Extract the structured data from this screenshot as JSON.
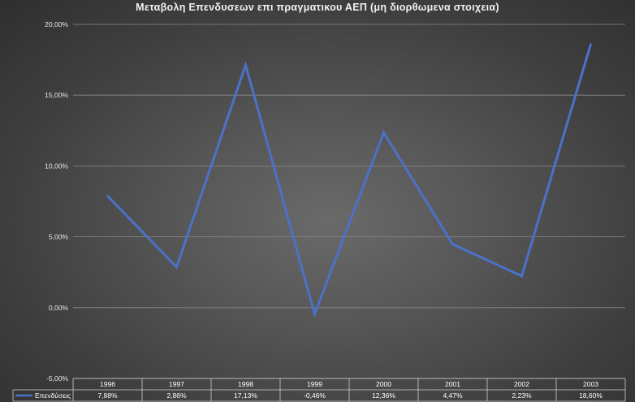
{
  "chart_data": {
    "type": "line",
    "title": "Μεταβολη Επενδυσεων επι πραγματικου ΑΕΠ (μη διορθωμενα στοιχεια)",
    "categories": [
      "1996",
      "1997",
      "1998",
      "1999",
      "2000",
      "2001",
      "2002",
      "2003"
    ],
    "series": [
      {
        "name": "Επενδύσεις",
        "values": [
          7.88,
          2.86,
          17.13,
          -0.46,
          12.36,
          4.47,
          2.23,
          18.6
        ],
        "labels": [
          "7,88%",
          "2,86%",
          "17,13%",
          "-0,46%",
          "12,36%",
          "4,47%",
          "2,23%",
          "18,60%"
        ],
        "color": "#4a72c9"
      }
    ],
    "y_ticks": [
      "20,00%",
      "15,00%",
      "10,00%",
      "5,00%",
      "0,00%",
      "-5,00%"
    ],
    "y_tick_values": [
      20,
      15,
      10,
      5,
      0,
      -5
    ],
    "ylim": [
      -5,
      20
    ],
    "grid": true,
    "legend": "data-table",
    "xlabel": "",
    "ylabel": ""
  }
}
